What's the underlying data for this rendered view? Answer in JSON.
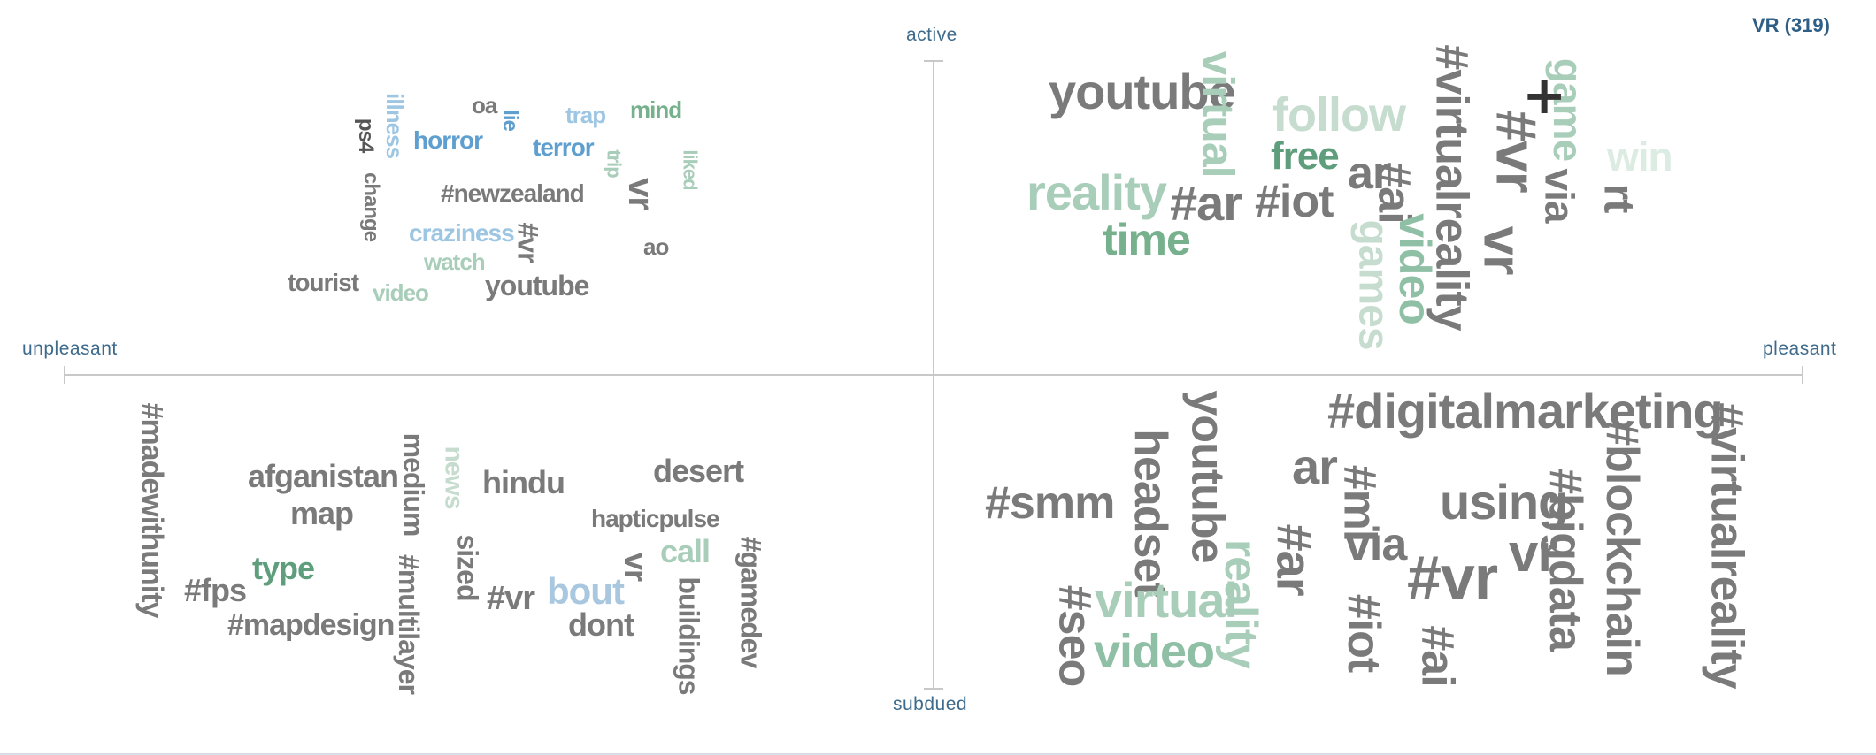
{
  "title": "VR (319)",
  "axes": {
    "top": "active",
    "bottom": "subdued",
    "left": "unpleasant",
    "right": "pleasant"
  },
  "colors": {
    "gray": "#7a7a7a",
    "dark": "#333333",
    "green": "#5f9e7c",
    "light_green": "#a8cdb9",
    "pale_green": "#dcece3",
    "blue": "#5e9fcf",
    "light_blue": "#9dc6e3",
    "axis": "#3e6b8c"
  },
  "quadrants": {
    "top_left": [
      "illness",
      "ps4",
      "oa",
      "lie",
      "horror",
      "trap",
      "mind",
      "terror",
      "trip",
      "liked",
      "change",
      "#newzealand",
      "vr",
      "craziness",
      "#vr",
      "watch",
      "ao",
      "tourist",
      "video",
      "youtube"
    ],
    "top_right": [
      "youtube",
      "virtual",
      "follow",
      "#virtualreality",
      "game",
      "free",
      "ar",
      "#vr",
      "win",
      "reality",
      "#ar",
      "#iot",
      "#ai",
      "video",
      "via",
      "vr",
      "rt",
      "time",
      "games"
    ],
    "bottom_left": [
      "#madewithunity",
      "afganistan",
      "map",
      "medium",
      "news",
      "hindu",
      "desert",
      "#multilayer",
      "sized",
      "hapticpulse",
      "type",
      "#fps",
      "#mapdesign",
      "#vr",
      "bout",
      "vr",
      "call",
      "#gamedev",
      "dont",
      "buildings"
    ],
    "bottom_right": [
      "#digitalmarketing",
      "#virtualreality",
      "headset",
      "youtube",
      "ar",
      "#ml",
      "#smm",
      "via",
      "using",
      "#blockchain",
      "#bigdata",
      "reality",
      "#ar",
      "#vr",
      "vr",
      "virtual",
      "#seo",
      "video",
      "#iot",
      "#ai"
    ]
  },
  "marker": "+"
}
